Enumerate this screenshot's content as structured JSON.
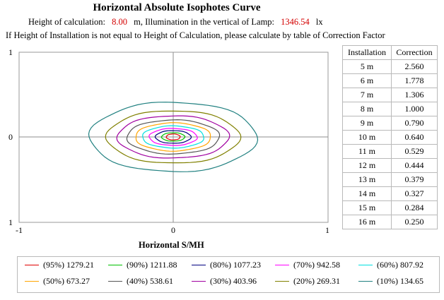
{
  "title": "Horizontal Absolute Isophotes Curve",
  "info": {
    "height_label": "Height of calculation:",
    "height_value": "8.00",
    "height_unit": "m, Illumination in the vertical of Lamp:",
    "lamp_value": "1346.54",
    "lamp_unit": "lx"
  },
  "note": "If Height of Installation is not equal to Height of Calculation, please calculate by table of Correction Factor",
  "correction_table": {
    "headers": [
      "Installation",
      "Correction"
    ],
    "rows": [
      [
        "5 m",
        "2.560"
      ],
      [
        "6 m",
        "1.778"
      ],
      [
        "7 m",
        "1.306"
      ],
      [
        "8 m",
        "1.000"
      ],
      [
        "9 m",
        "0.790"
      ],
      [
        "10 m",
        "0.640"
      ],
      [
        "11 m",
        "0.529"
      ],
      [
        "12 m",
        "0.444"
      ],
      [
        "13 m",
        "0.379"
      ],
      [
        "14 m",
        "0.327"
      ],
      [
        "15 m",
        "0.284"
      ],
      [
        "16 m",
        "0.250"
      ]
    ]
  },
  "chart_data": {
    "type": "line",
    "title": "Horizontal Absolute Isophotes Curve",
    "xlabel": "Horizontal  S/MH",
    "ylabel": "",
    "xlim": [
      -1,
      1
    ],
    "ylim": [
      -1,
      1
    ],
    "x_ticks": [
      "-1",
      "0",
      "1"
    ],
    "y_ticks": [
      "1",
      "0",
      "1"
    ],
    "grid": "crosshair at origin",
    "series": [
      {
        "name": "(95%) 1279.21",
        "color": "#e00000",
        "rx": 0.045,
        "ry": 0.035
      },
      {
        "name": "(90%) 1211.88",
        "color": "#00c000",
        "rx": 0.075,
        "ry": 0.05
      },
      {
        "name": "(80%) 1077.23",
        "color": "#000080",
        "rx": 0.115,
        "ry": 0.075
      },
      {
        "name": "(70%) 942.58",
        "color": "#ff00ff",
        "rx": 0.155,
        "ry": 0.1
      },
      {
        "name": "(60%) 807.92",
        "color": "#00e0e0",
        "rx": 0.2,
        "ry": 0.13
      },
      {
        "name": "(50%) 673.27",
        "color": "#ffa500",
        "rx": 0.245,
        "ry": 0.165
      },
      {
        "name": "(40%) 538.61",
        "color": "#555555",
        "rx": 0.3,
        "ry": 0.2
      },
      {
        "name": "(30%) 403.96",
        "color": "#a000a0",
        "rx": 0.36,
        "ry": 0.25
      },
      {
        "name": "(20%) 269.31",
        "color": "#808000",
        "rx": 0.43,
        "ry": 0.31
      },
      {
        "name": "(10%) 134.65",
        "color": "#208080",
        "rx": 0.54,
        "ry": 0.41
      }
    ]
  }
}
